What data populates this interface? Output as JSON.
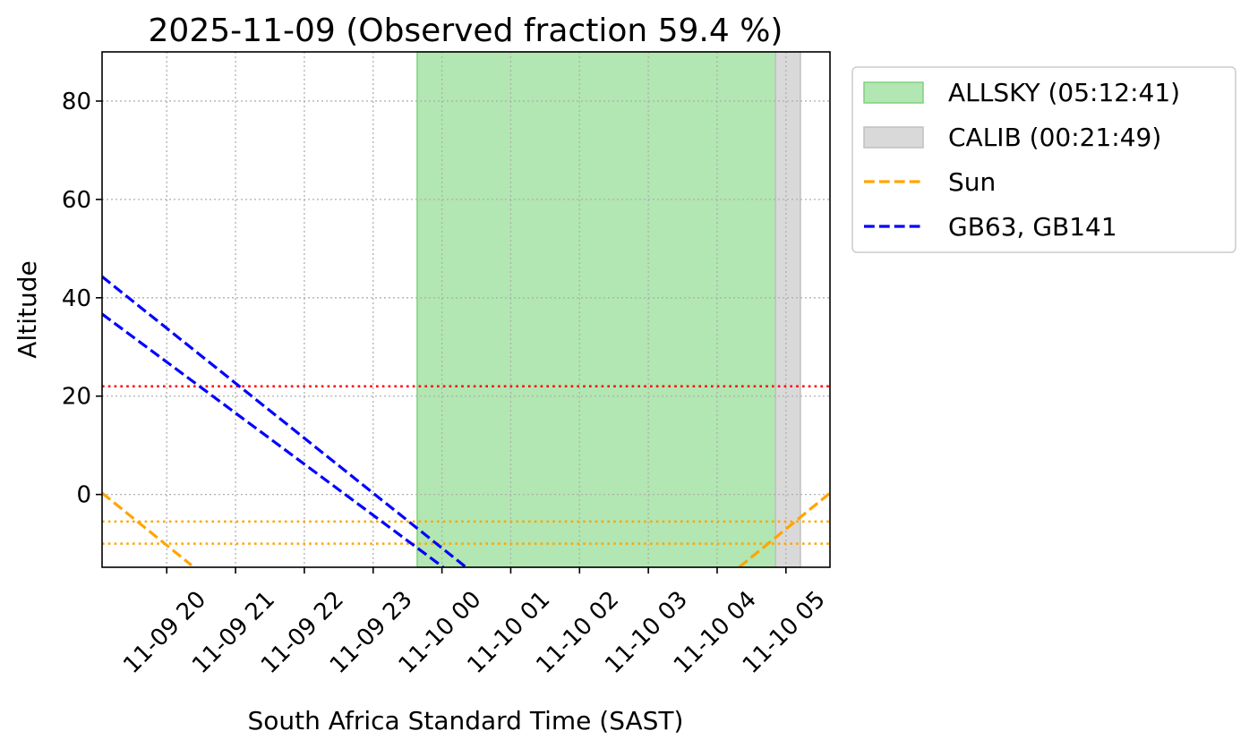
{
  "chart_data": {
    "type": "line",
    "title": "2025-11-09 (Observed fraction 59.4 %)",
    "xlabel": "South Africa Standard Time (SAST)",
    "ylabel": "Altitude",
    "x_units": "hours since 2025-11-09 00:00 SAST",
    "xlim": [
      19.06,
      29.64
    ],
    "ylim": [
      -14.8,
      90
    ],
    "grid": true,
    "legend_position": "outside-top-right",
    "x_ticks": [
      {
        "value": 20,
        "label": "11-09 20"
      },
      {
        "value": 21,
        "label": "11-09 21"
      },
      {
        "value": 22,
        "label": "11-09 22"
      },
      {
        "value": 23,
        "label": "11-09 23"
      },
      {
        "value": 24,
        "label": "11-10 00"
      },
      {
        "value": 25,
        "label": "11-10 01"
      },
      {
        "value": 26,
        "label": "11-10 02"
      },
      {
        "value": 27,
        "label": "11-10 03"
      },
      {
        "value": 28,
        "label": "11-10 04"
      },
      {
        "value": 29,
        "label": "11-10 05"
      }
    ],
    "y_ticks": [
      {
        "value": 0,
        "label": "0"
      },
      {
        "value": 20,
        "label": "20"
      },
      {
        "value": 40,
        "label": "40"
      },
      {
        "value": 60,
        "label": "60"
      },
      {
        "value": 80,
        "label": "80"
      }
    ],
    "spans": [
      {
        "name": "ALLSKY (05:12:41)",
        "start": 23.64,
        "end": 28.85,
        "color": "#b2e6b2",
        "edge": "#7fd17f"
      },
      {
        "name": "CALIB (00:21:49)",
        "start": 28.85,
        "end": 29.21,
        "color": "#d9d9d9",
        "edge": "#bfbfbf"
      }
    ],
    "hlines": [
      {
        "value": 22,
        "color": "#ff0000",
        "style": "dotted"
      },
      {
        "value": -5.5,
        "color": "#ffa500",
        "style": "dotted"
      },
      {
        "value": -10,
        "color": "#ffa500",
        "style": "dotted"
      }
    ],
    "series": [
      {
        "name": "Sun",
        "color": "#ffa500",
        "style": "dashed",
        "legend": true,
        "segments": [
          [
            [
              19.06,
              0.3
            ],
            [
              20.36,
              -14.4
            ]
          ],
          [
            [
              28.32,
              -14.8
            ],
            [
              29.64,
              0.3
            ]
          ]
        ]
      },
      {
        "name": "GB63, GB141",
        "color": "#0000ff",
        "style": "dashed",
        "legend": true,
        "segments": [
          [
            [
              19.06,
              44.3
            ],
            [
              24.35,
              -14.8
            ]
          ]
        ]
      },
      {
        "name": "GB63, GB141 (second target)",
        "color": "#0000ff",
        "style": "dashed",
        "legend": false,
        "segments": [
          [
            [
              19.06,
              36.7
            ],
            [
              24.02,
              -14.8
            ]
          ]
        ]
      }
    ],
    "legend": [
      {
        "label": "ALLSKY (05:12:41)",
        "kind": "patch",
        "color": "#b2e6b2",
        "edge": "#7fd17f"
      },
      {
        "label": "CALIB (00:21:49)",
        "kind": "patch",
        "color": "#d9d9d9",
        "edge": "#bfbfbf"
      },
      {
        "label": "Sun",
        "kind": "line",
        "color": "#ffa500"
      },
      {
        "label": "GB63, GB141",
        "kind": "line",
        "color": "#0000ff"
      }
    ]
  }
}
